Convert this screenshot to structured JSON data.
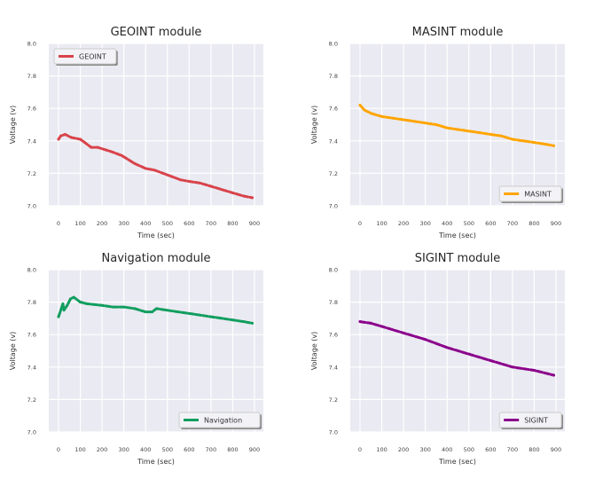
{
  "chart_data": [
    {
      "type": "line",
      "title": "GEOINT module",
      "xlabel": "Time (sec)",
      "ylabel": "Voltage (v)",
      "xlim": [
        -45,
        940
      ],
      "ylim": [
        7.0,
        8.0
      ],
      "xticks": [
        0,
        100,
        200,
        300,
        400,
        500,
        600,
        700,
        800,
        900
      ],
      "yticks": [
        "7.0",
        "7.2",
        "7.4",
        "7.6",
        "7.8",
        "8.0"
      ],
      "grid": true,
      "legend_position": "top-left",
      "series": [
        {
          "name": "GEOINT",
          "color": "#d9434a",
          "x": [
            0,
            10,
            30,
            60,
            100,
            120,
            150,
            180,
            250,
            290,
            350,
            400,
            440,
            500,
            560,
            600,
            650,
            700,
            750,
            800,
            850,
            890
          ],
          "y": [
            7.41,
            7.43,
            7.44,
            7.42,
            7.41,
            7.39,
            7.36,
            7.36,
            7.33,
            7.31,
            7.26,
            7.23,
            7.22,
            7.19,
            7.16,
            7.15,
            7.14,
            7.12,
            7.1,
            7.08,
            7.06,
            7.05
          ]
        }
      ]
    },
    {
      "type": "line",
      "title": "MASINT module",
      "xlabel": "Time (sec)",
      "ylabel": "Voltage (v)",
      "xlim": [
        -45,
        940
      ],
      "ylim": [
        7.0,
        8.0
      ],
      "xticks": [
        0,
        100,
        200,
        300,
        400,
        500,
        600,
        700,
        800,
        900
      ],
      "yticks": [
        "7.0",
        "7.2",
        "7.4",
        "7.6",
        "7.8",
        "8.0"
      ],
      "grid": true,
      "legend_position": "bottom-right",
      "series": [
        {
          "name": "MASINT",
          "color": "#ffa500",
          "x": [
            0,
            20,
            50,
            100,
            150,
            200,
            250,
            300,
            350,
            400,
            450,
            500,
            550,
            600,
            650,
            700,
            750,
            800,
            850,
            890
          ],
          "y": [
            7.62,
            7.59,
            7.57,
            7.55,
            7.54,
            7.53,
            7.52,
            7.51,
            7.5,
            7.48,
            7.47,
            7.46,
            7.45,
            7.44,
            7.43,
            7.41,
            7.4,
            7.39,
            7.38,
            7.37
          ]
        }
      ]
    },
    {
      "type": "line",
      "title": "Navigation module",
      "xlabel": "Time (sec)",
      "ylabel": "Voltage (v)",
      "xlim": [
        -45,
        940
      ],
      "ylim": [
        7.0,
        8.0
      ],
      "xticks": [
        0,
        100,
        200,
        300,
        400,
        500,
        600,
        700,
        800,
        900
      ],
      "yticks": [
        "7.0",
        "7.2",
        "7.4",
        "7.6",
        "7.8",
        "8.0"
      ],
      "grid": true,
      "legend_position": "bottom-right",
      "series": [
        {
          "name": "Navigation",
          "color": "#119e5f",
          "x": [
            0,
            10,
            20,
            25,
            40,
            55,
            70,
            100,
            130,
            200,
            250,
            300,
            350,
            400,
            430,
            450,
            500,
            550,
            600,
            650,
            700,
            750,
            800,
            850,
            890
          ],
          "y": [
            7.71,
            7.75,
            7.79,
            7.75,
            7.78,
            7.82,
            7.83,
            7.8,
            7.79,
            7.78,
            7.77,
            7.77,
            7.76,
            7.74,
            7.74,
            7.76,
            7.75,
            7.74,
            7.73,
            7.72,
            7.71,
            7.7,
            7.69,
            7.68,
            7.67
          ]
        }
      ]
    },
    {
      "type": "line",
      "title": "SIGINT module",
      "xlabel": "Time (sec)",
      "ylabel": "Voltage (v)",
      "xlim": [
        -45,
        940
      ],
      "ylim": [
        7.0,
        8.0
      ],
      "xticks": [
        0,
        100,
        200,
        300,
        400,
        500,
        600,
        700,
        800,
        900
      ],
      "yticks": [
        "7.0",
        "7.2",
        "7.4",
        "7.6",
        "7.8",
        "8.0"
      ],
      "grid": true,
      "legend_position": "bottom-right",
      "series": [
        {
          "name": "SIGINT",
          "color": "#8b008b",
          "x": [
            0,
            50,
            100,
            200,
            300,
            400,
            500,
            600,
            700,
            800,
            890
          ],
          "y": [
            7.68,
            7.67,
            7.65,
            7.61,
            7.57,
            7.52,
            7.48,
            7.44,
            7.4,
            7.38,
            7.35
          ]
        }
      ]
    }
  ]
}
